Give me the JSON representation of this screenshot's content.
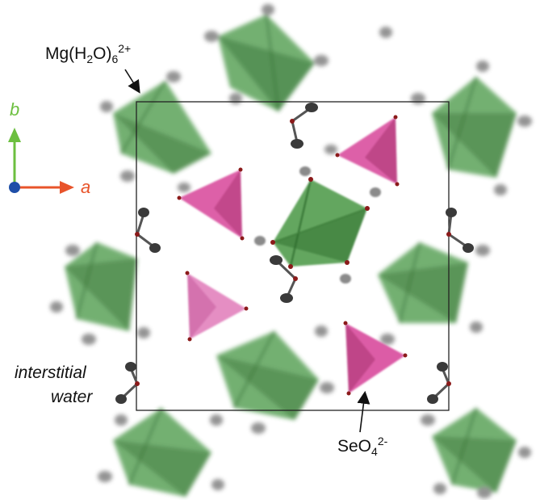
{
  "labels": {
    "mg_complex": {
      "base": "Mg(H",
      "sub1": "2",
      "mid": "O)",
      "sub2": "6",
      "sup": "2+"
    },
    "selenate": {
      "base": "SeO",
      "sub": "4",
      "sup": "2-"
    },
    "interstitial_line1": "interstitial",
    "interstitial_line2": "water"
  },
  "axes": {
    "b_label": "b",
    "a_label": "a",
    "b_color": "#6cbf3f",
    "a_color": "#e8542b",
    "origin_color": "#1f4fa8"
  },
  "colors": {
    "octahedron": "#4e9a4a",
    "octahedron_dark": "#2f6d2e",
    "tetrahedron": "#d94f9e",
    "tetrahedron_dark": "#a8326f",
    "hydrogen": "#8a8a8a",
    "oxygen": "#8b1a1a",
    "cell_line": "#222222"
  }
}
